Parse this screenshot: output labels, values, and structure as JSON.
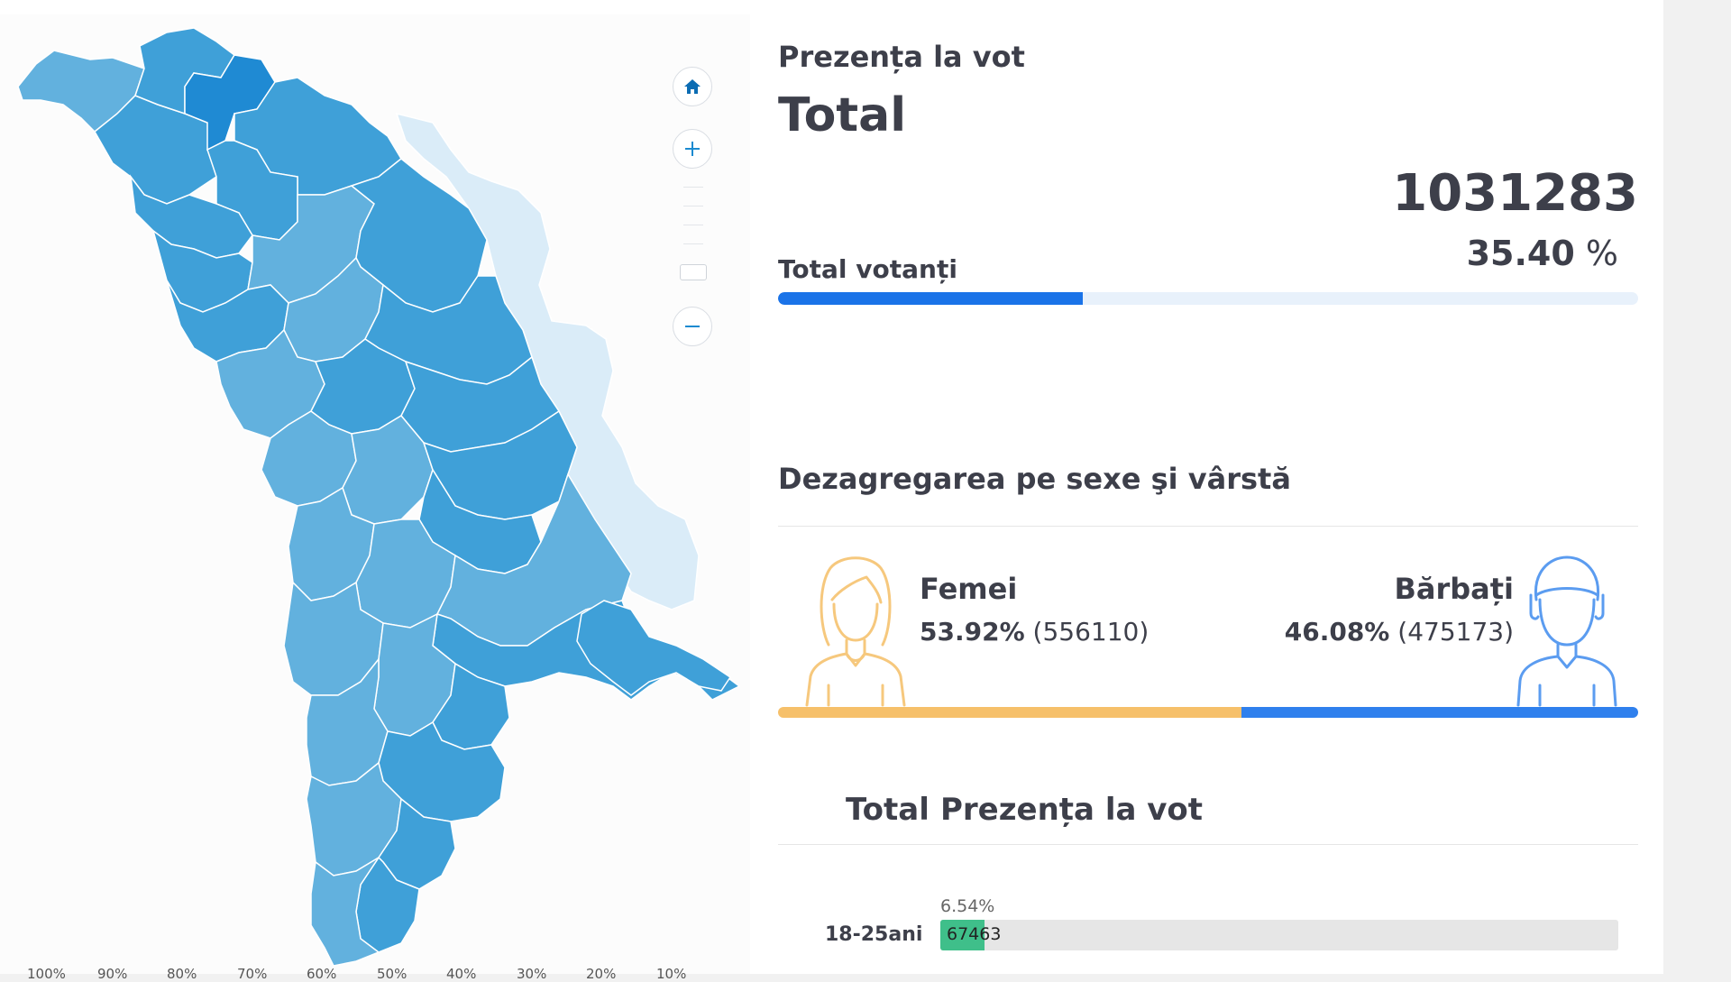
{
  "map": {
    "legend_ticks": [
      "100%",
      "90%",
      "80%",
      "70%",
      "60%",
      "50%",
      "40%",
      "30%",
      "20%",
      "10%"
    ],
    "controls": [
      "home-icon",
      "plus-icon",
      "minus-icon"
    ],
    "colors": {
      "dark": "#1f8ad3",
      "mid": "#3fa0d8",
      "light": "#62b1de",
      "transnistria": "#daecf8",
      "border": "#ffffff"
    }
  },
  "info": {
    "subtitle": "Prezența la vot",
    "title": "Total",
    "total_number": "1031283",
    "percent_value": "35.40",
    "percent_sign": "%",
    "total_voters_label": "Total votanți",
    "progress_fraction": 0.354,
    "progress_color": "#1a73e8"
  },
  "gender": {
    "section_title": "Dezagregarea pe sexe şi vârstă",
    "female": {
      "label": "Femei",
      "percent": "53.92%",
      "count": "(556110)",
      "fraction": 0.5392,
      "color": "#f6c06a",
      "icon": "woman-icon"
    },
    "male": {
      "label": "Bărbați",
      "percent": "46.08%",
      "count": "(475173)",
      "fraction": 0.4608,
      "color": "#2f80ed",
      "icon": "man-icon"
    }
  },
  "age": {
    "header_total": "Total",
    "header_turnout": "Prezența la vot",
    "rows": [
      {
        "label": "18-25ani",
        "percent": "6.54%",
        "count": "67463",
        "fraction": 0.0654,
        "color": "#3fbf8a"
      }
    ]
  }
}
